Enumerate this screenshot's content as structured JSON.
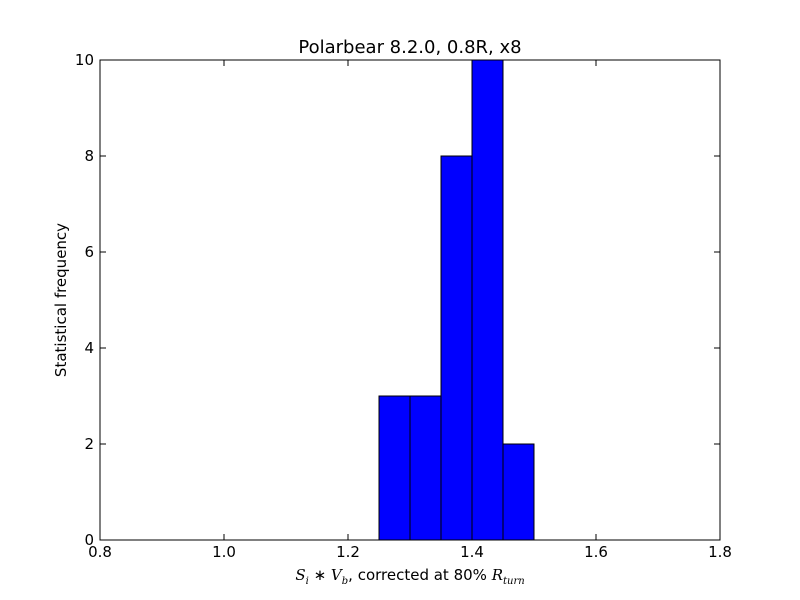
{
  "chart_data": {
    "type": "histogram",
    "title": "Polarbear 8.2.0, 0.8R, x8",
    "xlabel": [
      "S",
      "i",
      " ∗ ",
      "V",
      "b",
      ", corrected at 80% ",
      "R",
      "turn"
    ],
    "ylabel": "Statistical frequency",
    "bins": [
      1.25,
      1.3,
      1.35,
      1.4,
      1.45,
      1.5
    ],
    "values": [
      3,
      3,
      8,
      10,
      2
    ],
    "color": "#0000ff",
    "xlim": [
      0.8,
      1.8
    ],
    "xticks": [
      0.8,
      {
        "value": 1,
        "label": "1.0"
      },
      1.2,
      1.4,
      1.6,
      1.8
    ],
    "ylim": [
      0,
      10
    ],
    "yticks": [
      0,
      2,
      4,
      6,
      8,
      10
    ],
    "grid": false
  }
}
